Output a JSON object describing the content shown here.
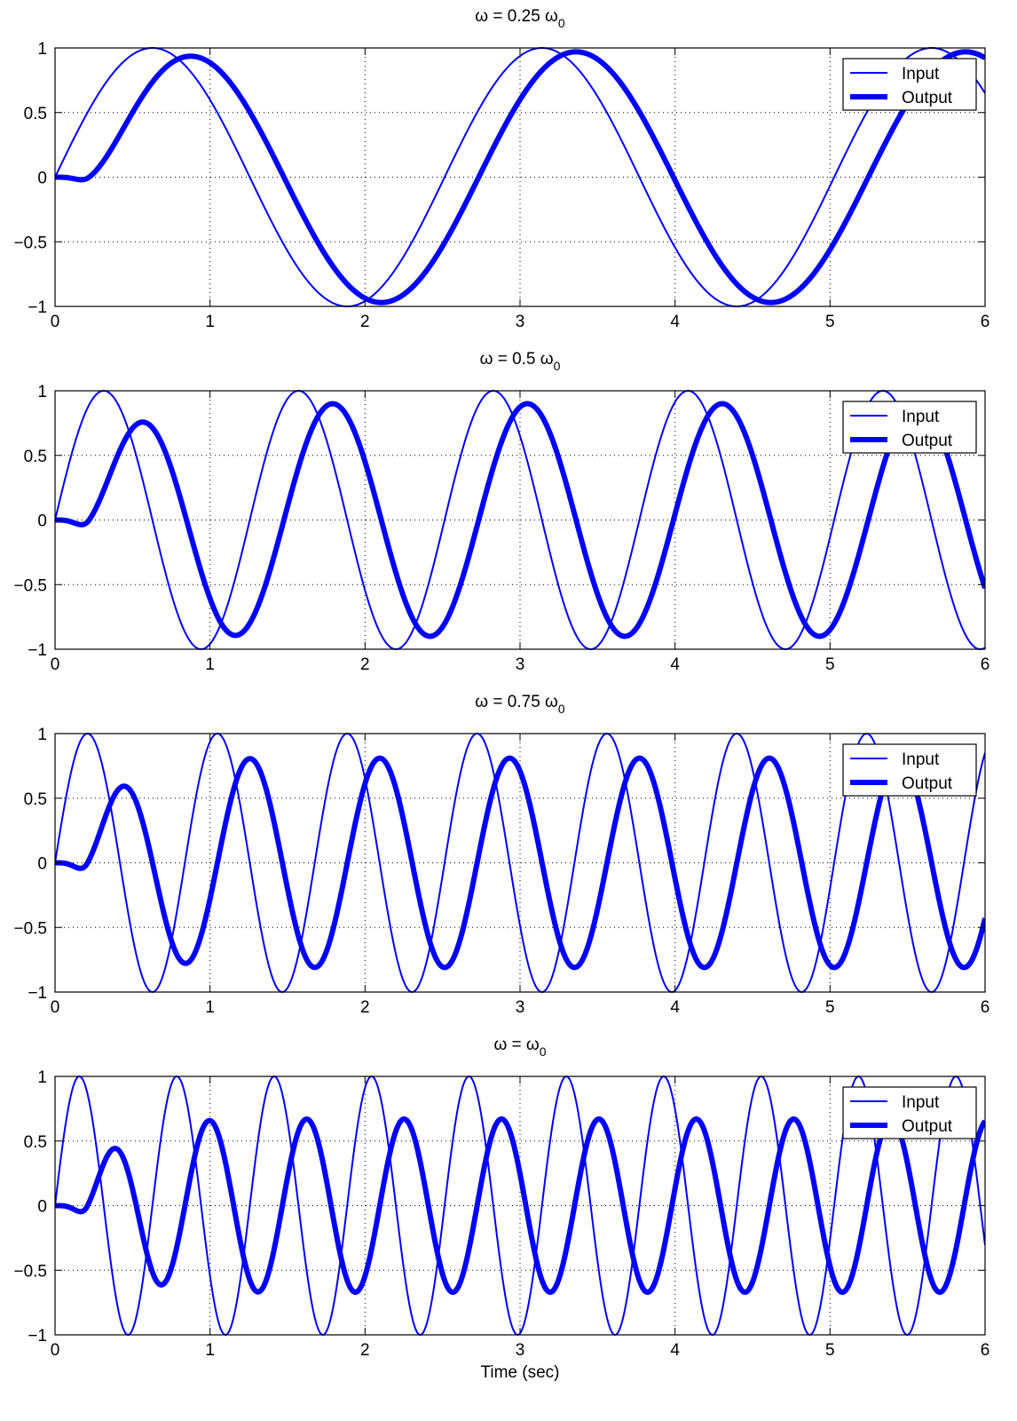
{
  "colors": {
    "series": "#0000ff",
    "axes": "#000000",
    "grid": "#000000",
    "background": "#ffffff"
  },
  "chart_data": [
    {
      "type": "line",
      "title_main": "ω = 0.25 ω",
      "title_sub": "0",
      "xlabel": "",
      "ylabel": "",
      "xlim": [
        0,
        6
      ],
      "ylim": [
        -1,
        1
      ],
      "xticks": [
        "0",
        "1",
        "2",
        "3",
        "4",
        "5",
        "6"
      ],
      "yticks": [
        "1",
        "0.5",
        "0",
        "−0.5",
        "−1"
      ],
      "grid": true,
      "legend": "top-right",
      "series": [
        {
          "name": "Input",
          "style": "thin",
          "values": {
            "x": [
              0.0,
              0.25,
              0.5,
              0.75,
              1.0,
              1.25,
              1.5,
              1.75,
              2.0,
              2.25,
              2.5,
              2.75,
              3.0,
              3.25,
              3.5,
              3.75,
              4.0,
              4.25,
              4.5,
              4.75,
              5.0,
              5.25,
              5.5,
              5.75,
              6.0
            ],
            "y": [
              0.0,
              0.59,
              0.95,
              0.95,
              0.59,
              0.0,
              -0.59,
              -0.95,
              -0.95,
              -0.59,
              0.0,
              0.59,
              0.95,
              0.95,
              0.59,
              0.0,
              -0.59,
              -0.95,
              -0.95,
              -0.59,
              0.0,
              0.59,
              0.95,
              0.95,
              0.66
            ]
          }
        },
        {
          "name": "Output",
          "style": "thick",
          "values": {
            "x": [
              0.0,
              0.25,
              0.5,
              0.75,
              1.0,
              1.25,
              1.5,
              1.75,
              2.0,
              2.25,
              2.5,
              2.75,
              3.0,
              3.25,
              3.5,
              3.75,
              4.0,
              4.25,
              4.5,
              4.75,
              5.0,
              5.25,
              5.5,
              5.75,
              6.0
            ],
            "y": [
              0.0,
              0.2,
              0.65,
              0.95,
              0.84,
              0.44,
              -0.16,
              -0.68,
              -0.96,
              -0.86,
              -0.44,
              0.15,
              0.68,
              0.96,
              0.86,
              0.44,
              -0.15,
              -0.68,
              -0.96,
              -0.86,
              -0.44,
              0.15,
              0.68,
              0.95,
              0.91
            ]
          }
        }
      ]
    },
    {
      "type": "line",
      "title_main": "ω = 0.5 ω",
      "title_sub": "0",
      "xlabel": "",
      "ylabel": "",
      "xlim": [
        0,
        6
      ],
      "ylim": [
        -1,
        1
      ],
      "xticks": [
        "0",
        "1",
        "2",
        "3",
        "4",
        "5",
        "6"
      ],
      "yticks": [
        "1",
        "0.5",
        "0",
        "−0.5",
        "−1"
      ],
      "grid": true,
      "legend": "top-right",
      "series": [
        {
          "name": "Input",
          "style": "thin",
          "values": {
            "x": [
              0.0,
              0.25,
              0.5,
              0.75,
              1.0,
              1.25,
              1.5,
              1.75,
              2.0,
              2.25,
              2.5,
              2.75,
              3.0,
              3.25,
              3.5,
              3.75,
              4.0,
              4.25,
              4.5,
              4.75,
              5.0,
              5.25,
              5.5,
              5.75,
              6.0
            ],
            "y": [
              0.0,
              0.95,
              0.59,
              -0.59,
              -0.95,
              0.0,
              0.95,
              0.59,
              -0.59,
              -0.95,
              0.0,
              0.95,
              0.59,
              -0.59,
              -0.95,
              0.0,
              0.95,
              0.59,
              -0.59,
              -0.95,
              0.0,
              0.95,
              0.59,
              -0.59,
              -1.0
            ]
          }
        },
        {
          "name": "Output",
          "style": "thick",
          "values": {
            "x": [
              0.0,
              0.25,
              0.5,
              0.75,
              1.0,
              1.25,
              1.5,
              1.75,
              2.0,
              2.25,
              2.5,
              2.75,
              3.0,
              3.25,
              3.5,
              3.75,
              4.0,
              4.25,
              4.5,
              4.75,
              5.0,
              5.25,
              5.5,
              5.75,
              6.0
            ],
            "y": [
              0.0,
              0.3,
              0.89,
              0.25,
              -0.68,
              -0.77,
              0.17,
              0.89,
              0.45,
              -0.57,
              -0.84,
              0.05,
              0.86,
              0.55,
              -0.48,
              -0.87,
              -0.06,
              0.82,
              0.63,
              -0.38,
              -0.89,
              -0.14,
              0.78,
              0.68,
              -0.52
            ]
          }
        }
      ]
    },
    {
      "type": "line",
      "title_main": "ω = 0.75 ω",
      "title_sub": "0",
      "xlabel": "",
      "ylabel": "",
      "xlim": [
        0,
        6
      ],
      "ylim": [
        -1,
        1
      ],
      "xticks": [
        "0",
        "1",
        "2",
        "3",
        "4",
        "5",
        "6"
      ],
      "yticks": [
        "1",
        "0.5",
        "0",
        "−0.5",
        "−1"
      ],
      "grid": true,
      "legend": "top-right",
      "series": [
        {
          "name": "Input",
          "style": "thin",
          "values": {
            "x": [
              0.0,
              0.25,
              0.5,
              0.75,
              1.0,
              1.25,
              1.5,
              1.75,
              2.0,
              2.25,
              2.5,
              2.75,
              3.0,
              3.25,
              3.5,
              3.75,
              4.0,
              4.25,
              4.5,
              4.75,
              5.0,
              5.25,
              5.5,
              5.75,
              6.0
            ],
            "y": [
              0.0,
              0.93,
              -0.73,
              -0.3,
              0.99,
              -0.5,
              -0.58,
              0.97,
              -0.19,
              -0.8,
              0.88,
              0.13,
              -0.94,
              0.69,
              0.43,
              -1.0,
              0.4,
              0.69,
              -0.95,
              0.08,
              0.87,
              -0.82,
              -0.25,
              0.99,
              0.84
            ]
          }
        },
        {
          "name": "Output",
          "style": "thick",
          "values": {
            "x": [
              0.0,
              0.25,
              0.5,
              0.75,
              1.0,
              1.25,
              1.5,
              1.75,
              2.0,
              2.25,
              2.5,
              2.75,
              3.0,
              3.25,
              3.5,
              3.75,
              4.0,
              4.25,
              4.5,
              4.75,
              5.0,
              5.25,
              5.5,
              5.75,
              6.0
            ],
            "y": [
              0.0,
              0.27,
              0.71,
              -0.62,
              -0.42,
              0.8,
              -0.16,
              -0.71,
              0.62,
              0.36,
              -0.79,
              0.24,
              0.66,
              -0.67,
              -0.27,
              0.8,
              -0.33,
              -0.6,
              0.72,
              0.18,
              -0.81,
              0.42,
              0.52,
              -0.77,
              -0.48
            ]
          }
        }
      ]
    },
    {
      "type": "line",
      "title_main": "ω = ω",
      "title_sub": "0",
      "xlabel": "Time (sec)",
      "ylabel": "",
      "xlim": [
        0,
        6
      ],
      "ylim": [
        -1,
        1
      ],
      "xticks": [
        "0",
        "1",
        "2",
        "3",
        "4",
        "5",
        "6"
      ],
      "yticks": [
        "1",
        "0.5",
        "0",
        "−0.5",
        "−1"
      ],
      "grid": true,
      "legend": "top-right",
      "series": [
        {
          "name": "Input",
          "style": "thin",
          "values": {
            "x": [
              0.0,
              0.25,
              0.5,
              0.75,
              1.0,
              1.25,
              1.5,
              1.75,
              2.0,
              2.25,
              2.5,
              2.75,
              3.0,
              3.25,
              3.5,
              3.75,
              4.0,
              4.25,
              4.5,
              4.75,
              5.0,
              5.25,
              5.5,
              5.75,
              6.0
            ],
            "y": [
              0.0,
              0.14,
              -0.99,
              0.97,
              -0.27,
              -0.82,
              0.9,
              -0.06,
              -0.96,
              0.69,
              0.29,
              -1.0,
              0.47,
              0.64,
              -0.98,
              0.16,
              0.86,
              -0.88,
              -0.14,
              0.99,
              -0.62,
              -0.46,
              1.0,
              -0.33,
              -0.3
            ]
          }
        },
        {
          "name": "Output",
          "style": "thick",
          "values": {
            "x": [
              0.0,
              0.25,
              0.5,
              0.75,
              1.0,
              1.25,
              1.5,
              1.75,
              2.0,
              2.25,
              2.5,
              2.75,
              3.0,
              3.25,
              3.5,
              3.75,
              4.0,
              4.25,
              4.5,
              4.75,
              5.0,
              5.25,
              5.5,
              5.75,
              6.0
            ],
            "y": [
              0.0,
              0.41,
              0.37,
              -0.64,
              0.66,
              -0.19,
              -0.49,
              0.66,
              -0.31,
              -0.34,
              0.65,
              -0.45,
              -0.16,
              0.6,
              -0.56,
              0.03,
              0.5,
              -0.64,
              0.2,
              0.38,
              -0.65,
              0.36,
              0.21,
              -0.6,
              0.6
            ]
          }
        }
      ]
    }
  ]
}
